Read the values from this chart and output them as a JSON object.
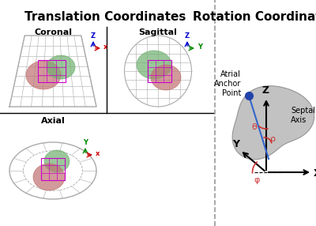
{
  "title_left": "Translation Coordinates",
  "title_right": "Rotation Coordinates",
  "panel_labels": [
    "Coronal",
    "Sagittal",
    "Axial"
  ],
  "bg_color": "#ffffff",
  "grid_color": "#aaaaaa",
  "heart_color_red": "#c07070",
  "heart_color_green": "#70b070",
  "heart_outline_color": "#888888",
  "heart_fill_gray": "#b0b0b0",
  "axis_blue": "#0000cc",
  "axis_red": "#cc0000",
  "axis_green": "#008800",
  "anchor_blue": "#2244aa",
  "septal_blue": "#3366cc",
  "angle_red": "#cc3333",
  "purple_box": "#cc00cc",
  "fig_width": 4.0,
  "fig_height": 2.86,
  "dpi": 100
}
